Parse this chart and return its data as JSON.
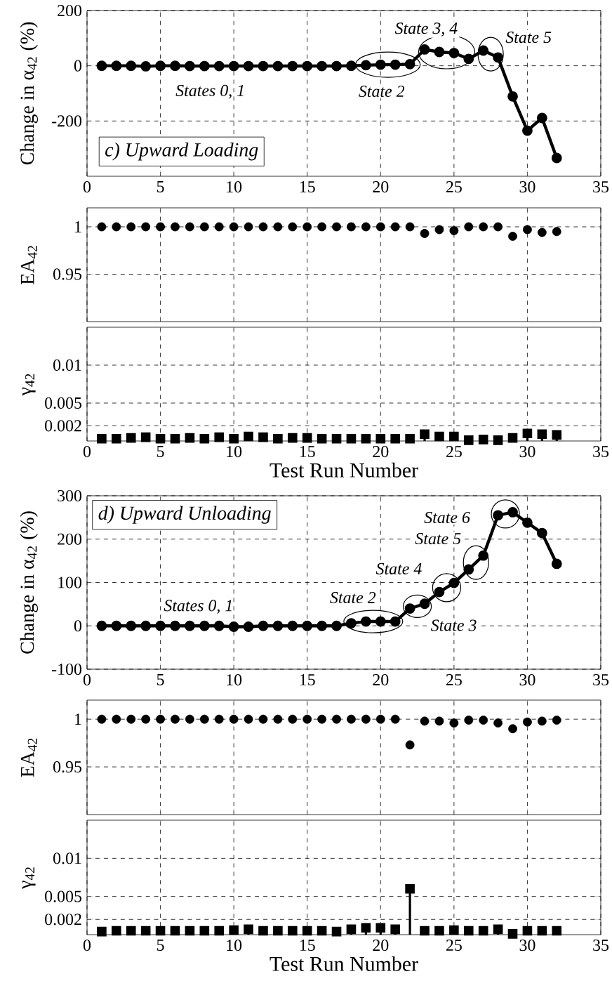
{
  "chart_data": [
    {
      "type": "line",
      "title": "c) Upward Loading",
      "ylabel": "Change in α$_{42}$ (%)",
      "color": "#000000",
      "marker": "circle",
      "grid": true,
      "x": [
        1,
        2,
        3,
        4,
        5,
        6,
        7,
        8,
        9,
        10,
        11,
        12,
        13,
        14,
        15,
        16,
        17,
        18,
        19,
        20,
        21,
        22,
        23,
        24,
        25,
        26,
        27,
        28,
        29,
        30,
        31,
        32
      ],
      "values": [
        0,
        0,
        0,
        -2,
        0,
        0,
        -1,
        -1,
        -1,
        -1,
        -1,
        -1,
        -1,
        -1,
        -1,
        -1,
        -1,
        0,
        2,
        4,
        4,
        6,
        59,
        50,
        46,
        25,
        55,
        30,
        -111,
        -235,
        -189,
        -334
      ],
      "xlim": [
        0,
        35
      ],
      "xticks": [
        0,
        5,
        10,
        15,
        20,
        25,
        30,
        35
      ],
      "ylim": [
        -400,
        200
      ],
      "yticks": [
        -200,
        0,
        200
      ],
      "annotations": [
        "States 0, 1",
        {
          "text": "State 2",
          "x": 20.5,
          "y": 4
        },
        {
          "text": "State 3, 4",
          "x": 24.5,
          "y": 50
        },
        {
          "text": "State 5",
          "x": 27.5,
          "y": 42
        }
      ]
    },
    {
      "type": "scatter",
      "ylabel": "EA$_{42}$",
      "color": "#000000",
      "marker": "circle",
      "grid": true,
      "tick_labels": "y",
      "x": [
        1,
        2,
        3,
        4,
        5,
        6,
        7,
        8,
        9,
        10,
        11,
        12,
        13,
        14,
        15,
        16,
        17,
        18,
        19,
        20,
        21,
        22,
        23,
        24,
        25,
        26,
        27,
        28,
        29,
        30,
        31,
        32
      ],
      "values": [
        1,
        1,
        1,
        1,
        1,
        1,
        1,
        1,
        1,
        1,
        1,
        1,
        1,
        1,
        1,
        1,
        1,
        1,
        1,
        1,
        1,
        1,
        0.993,
        0.997,
        0.996,
        1,
        1,
        1,
        0.99,
        0.997,
        0.994,
        0.995
      ],
      "xlim": [
        0,
        35
      ],
      "xticks": [
        0,
        5,
        10,
        15,
        20,
        25,
        30,
        35
      ],
      "ylim": [
        0.9,
        1.02
      ],
      "yticks": [
        0.95,
        1
      ]
    },
    {
      "type": "lollipop",
      "xlabel": "Test Run Number",
      "ylabel": "γ$_{42}$",
      "color": "#000000",
      "marker": "square",
      "grid": true,
      "x": [
        1,
        2,
        3,
        4,
        5,
        6,
        7,
        8,
        9,
        10,
        11,
        12,
        13,
        14,
        15,
        16,
        17,
        18,
        19,
        20,
        21,
        22,
        23,
        24,
        25,
        26,
        27,
        28,
        29,
        30,
        31,
        32
      ],
      "values": [
        0.0003,
        0.0003,
        0.0004,
        0.0005,
        0.0003,
        0.0003,
        0.0004,
        0.0003,
        0.0005,
        0.0003,
        0.0006,
        0.0005,
        0.0003,
        0.0004,
        0.0004,
        0.0003,
        0.0003,
        0.0003,
        0.0003,
        0.0003,
        0.0003,
        0.0003,
        0.0009,
        0.0006,
        0.0006,
        0.0001,
        0.0002,
        0.0001,
        0.0004,
        0.001,
        0.0009,
        0.0008
      ],
      "xlim": [
        0,
        35
      ],
      "xticks": [
        0,
        5,
        10,
        15,
        20,
        25,
        30,
        35
      ],
      "ylim": [
        0,
        0.015
      ],
      "yticks": [
        0.002,
        0.005,
        0.01
      ]
    },
    {
      "type": "line",
      "title": "d) Upward Unloading",
      "ylabel": "Change in α$_{42}$ (%)",
      "color": "#000000",
      "marker": "circle",
      "grid": true,
      "x": [
        1,
        2,
        3,
        4,
        5,
        6,
        7,
        8,
        9,
        10,
        11,
        12,
        13,
        14,
        15,
        16,
        17,
        18,
        19,
        20,
        21,
        22,
        23,
        24,
        25,
        26,
        27,
        28,
        29,
        30,
        31,
        32
      ],
      "values": [
        0,
        0,
        0,
        0,
        0,
        0,
        0,
        0,
        0,
        -2,
        -2,
        0,
        0,
        0,
        0,
        0,
        0,
        6,
        10,
        10,
        10,
        40,
        51,
        78,
        99,
        130,
        162,
        255,
        262,
        238,
        214,
        143
      ],
      "xlim": [
        0,
        35
      ],
      "xticks": [
        0,
        5,
        10,
        15,
        20,
        25,
        30,
        35
      ],
      "ylim": [
        -100,
        300
      ],
      "yticks": [
        -100,
        0,
        100,
        200,
        300
      ],
      "annotations": [
        "States 0, 1",
        {
          "text": "State 2",
          "x": 19.5,
          "y": 10
        },
        {
          "text": "State 3",
          "x": 22.5,
          "y": 45
        },
        {
          "text": "State 4",
          "x": 24.5,
          "y": 88
        },
        {
          "text": "State 5",
          "x": 26.5,
          "y": 146
        },
        {
          "text": "State 6",
          "x": 28.5,
          "y": 258
        }
      ]
    },
    {
      "type": "scatter",
      "ylabel": "EA$_{42}$",
      "color": "#000000",
      "marker": "circle",
      "grid": true,
      "tick_labels": "y",
      "x": [
        1,
        2,
        3,
        4,
        5,
        6,
        7,
        8,
        9,
        10,
        11,
        12,
        13,
        14,
        15,
        16,
        17,
        18,
        19,
        20,
        21,
        22,
        23,
        24,
        25,
        26,
        27,
        28,
        29,
        30,
        31,
        32
      ],
      "values": [
        1,
        1,
        1,
        1,
        1,
        1,
        1,
        1,
        1,
        1,
        1,
        1,
        1,
        1,
        1,
        1,
        1,
        1,
        1,
        1,
        1,
        0.973,
        0.998,
        0.998,
        0.996,
        0.999,
        0.999,
        0.996,
        0.99,
        0.997,
        0.998,
        0.999
      ],
      "xlim": [
        0,
        35
      ],
      "xticks": [
        0,
        5,
        10,
        15,
        20,
        25,
        30,
        35
      ],
      "ylim": [
        0.9,
        1.02
      ],
      "yticks": [
        0.95,
        1
      ]
    },
    {
      "type": "lollipop",
      "xlabel": "Test Run Number",
      "ylabel": "γ$_{42}$",
      "color": "#000000",
      "marker": "square",
      "grid": true,
      "x": [
        1,
        2,
        3,
        4,
        5,
        6,
        7,
        8,
        9,
        10,
        11,
        12,
        13,
        14,
        15,
        16,
        17,
        18,
        19,
        20,
        21,
        22,
        23,
        24,
        25,
        26,
        27,
        28,
        29,
        30,
        31,
        32
      ],
      "values": [
        0.0004,
        0.0005,
        0.0005,
        0.0005,
        0.0005,
        0.0005,
        0.0005,
        0.0005,
        0.0005,
        0.0006,
        0.0007,
        0.0005,
        0.0005,
        0.0005,
        0.0005,
        0.0005,
        0.0004,
        0.0007,
        0.0009,
        0.0009,
        0.0007,
        0.006,
        0.0005,
        0.0005,
        0.0006,
        0.0005,
        0.0005,
        0.0007,
        0.0001,
        0.0005,
        0.0005,
        0.0005
      ],
      "xlim": [
        0,
        35
      ],
      "xticks": [
        0,
        5,
        10,
        15,
        20,
        25,
        30,
        35
      ],
      "ylim": [
        0,
        0.015
      ],
      "yticks": [
        0.002,
        0.005,
        0.01
      ]
    }
  ]
}
